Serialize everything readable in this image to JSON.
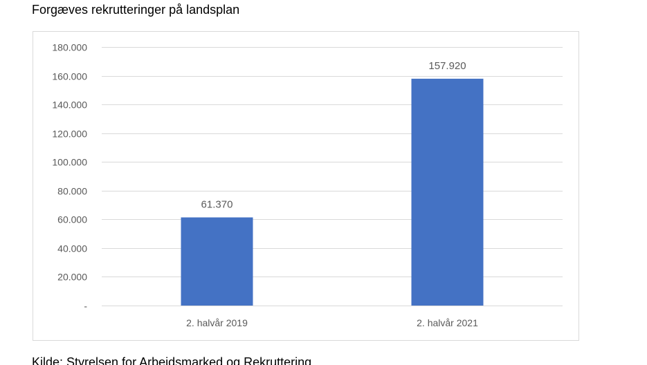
{
  "page": {
    "title": "Forgæves rekrutteringer på landsplan",
    "source": "Kilde: Styrelsen for Arbejdsmarked og Rekruttering"
  },
  "chart_data": {
    "type": "bar",
    "categories": [
      "2. halvår 2019",
      "2. halvår 2021"
    ],
    "values": [
      61370,
      157920
    ],
    "value_labels": [
      "61.370",
      "157.920"
    ],
    "ylim": [
      0,
      180000
    ],
    "y_ticks": [
      0,
      20000,
      40000,
      60000,
      80000,
      100000,
      120000,
      140000,
      160000,
      180000
    ],
    "y_tick_labels": [
      "-",
      "20.000",
      "40.000",
      "60.000",
      "80.000",
      "100.000",
      "120.000",
      "140.000",
      "160.000",
      "180.000"
    ],
    "grid": true,
    "legend": "none",
    "colors": {
      "bar": "#4472C4",
      "grid": "#d9d9d9",
      "axis_text": "#595959"
    }
  }
}
